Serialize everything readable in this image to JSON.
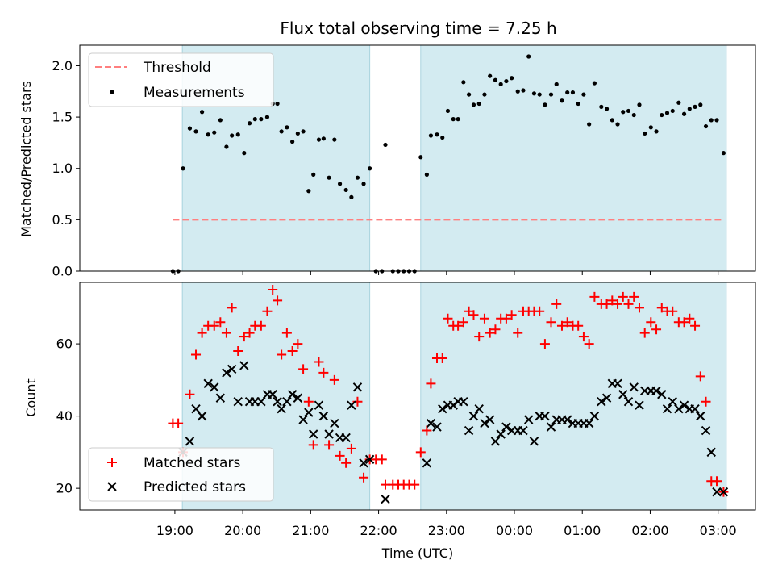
{
  "title": "Flux total observing time = 7.25 h",
  "chart_data": [
    {
      "type": "scatter",
      "ylabel": "Matched/Predicted stars",
      "ylim": [
        0,
        2.2
      ],
      "yticks": [
        "0.0",
        "0.5",
        "1.0",
        "1.5",
        "2.0"
      ],
      "legend": {
        "placement": "top-left",
        "threshold_label": "Threshold",
        "measurements_label": "Measurements"
      },
      "shaded_intervals_hours": [
        [
          19.11,
          21.87
        ],
        [
          22.62,
          27.12
        ]
      ],
      "threshold": 0.5,
      "threshold_color": "#ff7f7f",
      "shade_color": "#d3ebf1",
      "series": [
        {
          "name": "Measurements",
          "color": "#000000",
          "x": [
            18.97,
            19.05,
            19.12,
            19.22,
            19.31,
            19.4,
            19.49,
            19.58,
            19.67,
            19.76,
            19.84,
            19.93,
            20.02,
            20.1,
            20.18,
            20.27,
            20.36,
            20.44,
            20.51,
            20.57,
            20.65,
            20.73,
            20.81,
            20.89,
            20.97,
            21.04,
            21.12,
            21.19,
            21.27,
            21.35,
            21.43,
            21.52,
            21.6,
            21.69,
            21.78,
            21.87,
            21.96,
            22.05,
            22.1,
            22.21,
            22.29,
            22.37,
            22.45,
            22.53,
            22.62,
            22.71,
            22.77,
            22.86,
            22.94,
            23.02,
            23.1,
            23.17,
            23.25,
            23.33,
            23.4,
            23.48,
            23.56,
            23.64,
            23.72,
            23.8,
            23.88,
            23.96,
            24.05,
            24.13,
            24.21,
            24.29,
            24.37,
            24.45,
            24.54,
            24.62,
            24.7,
            24.78,
            24.86,
            24.94,
            25.02,
            25.1,
            25.18,
            25.28,
            25.36,
            25.44,
            25.52,
            25.6,
            25.68,
            25.76,
            25.84,
            25.92,
            26.01,
            26.09,
            26.17,
            26.25,
            26.33,
            26.42,
            26.5,
            26.58,
            26.66,
            26.74,
            26.82,
            26.9,
            26.98,
            27.08
          ],
          "y": [
            0.0,
            0.0,
            1.0,
            1.39,
            1.36,
            1.55,
            1.33,
            1.35,
            1.47,
            1.21,
            1.32,
            1.33,
            1.15,
            1.44,
            1.48,
            1.48,
            1.5,
            1.63,
            1.63,
            1.36,
            1.4,
            1.26,
            1.34,
            1.36,
            0.78,
            0.94,
            1.28,
            1.29,
            0.91,
            1.28,
            0.85,
            0.79,
            0.72,
            0.91,
            0.85,
            1.0,
            0.0,
            0.0,
            1.23,
            0.0,
            0.0,
            0.0,
            0.0,
            0.0,
            1.11,
            0.94,
            1.32,
            1.33,
            1.3,
            1.56,
            1.48,
            1.48,
            1.84,
            1.72,
            1.62,
            1.63,
            1.72,
            1.9,
            1.86,
            1.82,
            1.85,
            1.88,
            1.75,
            1.76,
            2.09,
            1.73,
            1.72,
            1.62,
            1.72,
            1.82,
            1.66,
            1.74,
            1.74,
            1.63,
            1.72,
            1.43,
            1.83,
            1.6,
            1.58,
            1.47,
            1.43,
            1.55,
            1.56,
            1.52,
            1.62,
            1.34,
            1.4,
            1.36,
            1.52,
            1.54,
            1.56,
            1.64,
            1.53,
            1.58,
            1.6,
            1.62,
            1.41,
            1.47,
            1.47,
            1.15
          ]
        }
      ]
    },
    {
      "type": "scatter",
      "ylabel": "Count",
      "xlabel": "Time (UTC)",
      "ylim": [
        14,
        77
      ],
      "yticks": [
        "20",
        "40",
        "60"
      ],
      "xticks": [
        "19:00",
        "20:00",
        "21:00",
        "22:00",
        "23:00",
        "00:00",
        "01:00",
        "02:00",
        "03:00"
      ],
      "legend": {
        "placement": "bottom-left",
        "matched_label": "Matched stars",
        "predicted_label": "Predicted stars"
      },
      "series": [
        {
          "name": "Matched stars",
          "color": "#ff0000",
          "x": [
            18.97,
            19.05,
            19.12,
            19.22,
            19.31,
            19.4,
            19.49,
            19.58,
            19.67,
            19.76,
            19.84,
            19.93,
            20.02,
            20.1,
            20.18,
            20.27,
            20.36,
            20.44,
            20.51,
            20.57,
            20.65,
            20.73,
            20.81,
            20.89,
            20.97,
            21.04,
            21.12,
            21.19,
            21.27,
            21.35,
            21.43,
            21.52,
            21.6,
            21.69,
            21.78,
            21.87,
            21.96,
            22.05,
            22.1,
            22.21,
            22.29,
            22.37,
            22.45,
            22.53,
            22.62,
            22.71,
            22.77,
            22.86,
            22.94,
            23.02,
            23.1,
            23.17,
            23.25,
            23.33,
            23.4,
            23.48,
            23.56,
            23.64,
            23.72,
            23.8,
            23.88,
            23.96,
            24.05,
            24.13,
            24.21,
            24.29,
            24.37,
            24.45,
            24.54,
            24.62,
            24.7,
            24.78,
            24.86,
            24.94,
            25.02,
            25.1,
            25.18,
            25.28,
            25.36,
            25.44,
            25.52,
            25.6,
            25.68,
            25.76,
            25.84,
            25.92,
            26.01,
            26.09,
            26.17,
            26.25,
            26.33,
            26.42,
            26.5,
            26.58,
            26.66,
            26.74,
            26.82,
            26.9,
            26.98,
            27.08
          ],
          "y": [
            38,
            38,
            30,
            46,
            57,
            63,
            65,
            65,
            66,
            63,
            70,
            58,
            62,
            63,
            65,
            65,
            69,
            75,
            72,
            57,
            63,
            58,
            60,
            53,
            44,
            32,
            55,
            52,
            32,
            50,
            29,
            27,
            31,
            44,
            23,
            28,
            28,
            28,
            21,
            21,
            21,
            21,
            21,
            21,
            30,
            36,
            49,
            56,
            56,
            67,
            65,
            65,
            66,
            69,
            68,
            62,
            67,
            63,
            64,
            67,
            67,
            68,
            63,
            69,
            69,
            69,
            69,
            60,
            66,
            71,
            65,
            66,
            65,
            65,
            62,
            60,
            73,
            71,
            71,
            72,
            71,
            73,
            71,
            73,
            70,
            63,
            66,
            64,
            70,
            69,
            69,
            66,
            66,
            67,
            65,
            51,
            44,
            22,
            22,
            19
          ]
        },
        {
          "name": "Predicted stars",
          "color": "#000000",
          "x": [
            19.12,
            19.22,
            19.31,
            19.4,
            19.49,
            19.58,
            19.67,
            19.76,
            19.84,
            19.93,
            20.02,
            20.1,
            20.18,
            20.27,
            20.36,
            20.44,
            20.51,
            20.57,
            20.65,
            20.73,
            20.81,
            20.89,
            20.97,
            21.04,
            21.12,
            21.19,
            21.27,
            21.35,
            21.43,
            21.52,
            21.6,
            21.69,
            21.78,
            21.87,
            22.1,
            22.71,
            22.77,
            22.86,
            22.94,
            23.02,
            23.1,
            23.17,
            23.25,
            23.33,
            23.4,
            23.48,
            23.56,
            23.64,
            23.72,
            23.8,
            23.88,
            23.96,
            24.05,
            24.13,
            24.21,
            24.29,
            24.37,
            24.45,
            24.54,
            24.62,
            24.7,
            24.78,
            24.86,
            24.94,
            25.02,
            25.1,
            25.18,
            25.28,
            25.36,
            25.44,
            25.52,
            25.6,
            25.68,
            25.76,
            25.84,
            25.92,
            26.01,
            26.09,
            26.17,
            26.25,
            26.33,
            26.42,
            26.5,
            26.58,
            26.66,
            26.74,
            26.82,
            26.9,
            26.98,
            27.08
          ],
          "y": [
            30,
            33,
            42,
            40,
            49,
            48,
            45,
            52,
            53,
            44,
            54,
            44,
            44,
            44,
            46,
            46,
            44,
            42,
            44,
            46,
            45,
            39,
            41,
            35,
            43,
            40,
            35,
            38,
            34,
            34,
            43,
            48,
            27,
            28,
            17,
            27,
            38,
            37,
            42,
            43,
            43,
            44,
            44,
            36,
            40,
            42,
            38,
            39,
            33,
            35,
            37,
            36,
            36,
            36,
            39,
            33,
            40,
            40,
            37,
            39,
            39,
            39,
            38,
            38,
            38,
            38,
            40,
            44,
            45,
            49,
            49,
            46,
            44,
            48,
            43,
            47,
            47,
            47,
            46,
            42,
            44,
            42,
            43,
            42,
            42,
            40,
            36,
            30,
            19,
            19
          ]
        }
      ]
    }
  ]
}
